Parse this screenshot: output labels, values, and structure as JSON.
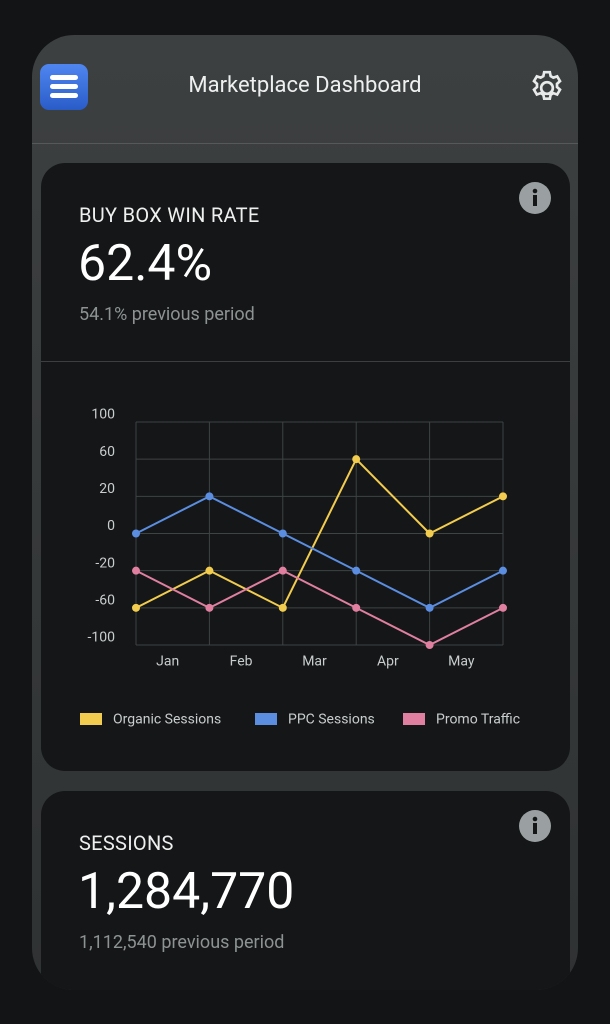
{
  "header": {
    "title": "Marketplace Dashboard"
  },
  "cards": [
    {
      "title": "BUY BOX WIN RATE",
      "value": "62.4%",
      "previous": "54.1% previous period"
    },
    {
      "title": "SESSIONS",
      "value": "1,284,770",
      "previous": "1,112,540 previous period"
    }
  ],
  "chart_data": {
    "type": "line",
    "categories": [
      "Jan",
      "Feb",
      "Mar",
      "Apr",
      "May",
      null
    ],
    "series": [
      {
        "name": "Organic Sessions",
        "color": "#f2cc4e",
        "values": [
          -60,
          -20,
          -60,
          60,
          0,
          20
        ]
      },
      {
        "name": "PPC Sessions",
        "color": "#5b8de0",
        "values": [
          0,
          20,
          0,
          -20,
          -60,
          -20
        ]
      },
      {
        "name": "Promo Traffic",
        "color": "#e07fa0",
        "values": [
          -20,
          -60,
          -20,
          -60,
          -100,
          -60
        ]
      }
    ],
    "ylim": [
      -100,
      100
    ],
    "yticks": [
      -100,
      -60,
      -20,
      0,
      20,
      60,
      100
    ],
    "grid": true,
    "legend": "bottom"
  }
}
